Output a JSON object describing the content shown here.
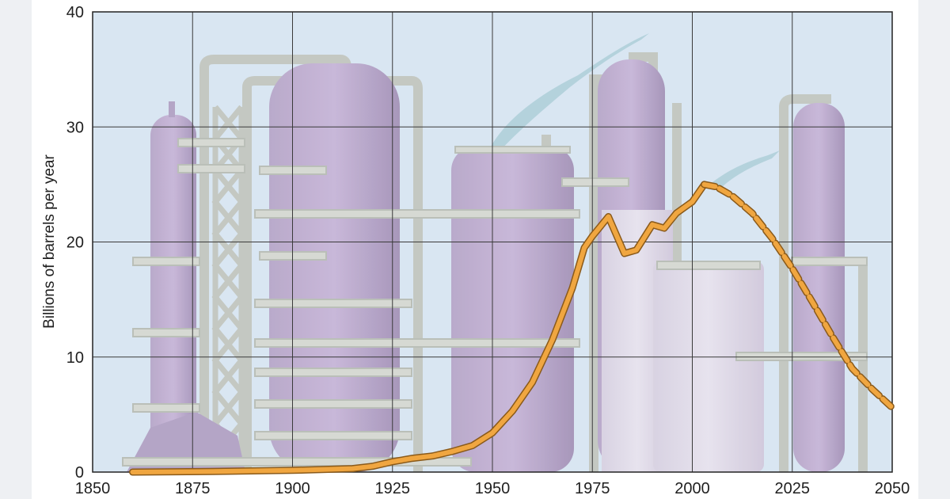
{
  "chart_data": {
    "type": "line",
    "title": "",
    "xlabel": "",
    "ylabel": "Billions of barrels per year",
    "xlim": [
      1850,
      2050
    ],
    "ylim": [
      0,
      40
    ],
    "x_ticks": [
      1850,
      1875,
      1900,
      1925,
      1950,
      1975,
      2000,
      2025,
      2050
    ],
    "y_ticks": [
      0,
      10,
      20,
      30,
      40
    ],
    "grid": true,
    "legend": "none",
    "background": "illustration of oil refinery towers and storage tanks",
    "series": [
      {
        "style": "solid",
        "color": "#f0a640",
        "x": [
          1860,
          1880,
          1900,
          1915,
          1920,
          1925,
          1930,
          1935,
          1940,
          1945,
          1950,
          1955,
          1960,
          1965,
          1970,
          1973,
          1975,
          1979,
          1983,
          1986,
          1990,
          1993,
          1996,
          2000,
          2002,
          2003
        ],
        "y": [
          0.0,
          0.05,
          0.15,
          0.3,
          0.5,
          0.9,
          1.2,
          1.4,
          1.8,
          2.3,
          3.4,
          5.3,
          7.8,
          11.5,
          16.0,
          19.5,
          20.5,
          22.2,
          19.0,
          19.3,
          21.5,
          21.2,
          22.5,
          23.5,
          24.5,
          25.0
        ]
      },
      {
        "style": "dashed",
        "color": "#f0a640",
        "x": [
          2003,
          2006,
          2010,
          2015,
          2020,
          2025,
          2030,
          2035,
          2040,
          2045,
          2050
        ],
        "y": [
          25.0,
          24.8,
          24.0,
          22.5,
          20.3,
          17.7,
          14.8,
          11.8,
          9.0,
          7.2,
          5.6
        ]
      }
    ]
  }
}
